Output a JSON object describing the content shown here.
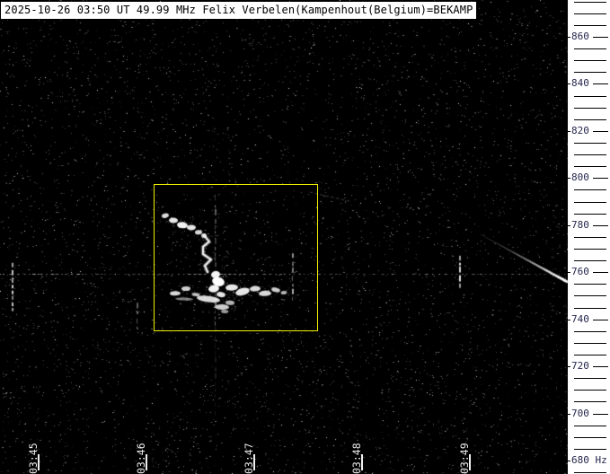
{
  "header": {
    "title": "2025-10-26 03:50 UT 49.99 MHz Felix Verbelen(Kampenhout(Belgium)=BEKAMP"
  },
  "colors": {
    "background": "#000000",
    "title_bg": "#ffffff",
    "title_text": "#000000",
    "axis_bg": "#ffffff",
    "axis_text": "#26264e",
    "tick_line": "#000000",
    "time_label_text": "#ececec",
    "highlight_box": "#f0f000",
    "signal": "#ffffff"
  },
  "time_axis": {
    "labels": [
      "03:45",
      "03:46",
      "03:47",
      "03:48",
      "03:49"
    ]
  },
  "freq_axis": {
    "labeled_values": [
      860,
      840,
      820,
      800,
      780,
      760,
      740,
      720,
      700,
      680
    ],
    "bottom_label": "680 Hz",
    "minor_step_hz": 5,
    "top_hz": 875,
    "bottom_hz": 675
  },
  "chart_data": {
    "type": "heatmap",
    "subtype": "radio-meteor-spectrogram",
    "title": "2025-10-26 03:50 UT 49.99 MHz Felix Verbelen(Kampenhout(Belgium)=BEKAMP",
    "x": {
      "label": "UT time",
      "tick_labels": [
        "03:45",
        "03:46",
        "03:47",
        "03:48",
        "03:49"
      ],
      "tick_interval_s": 60
    },
    "y": {
      "label": "Hz",
      "min": 675,
      "max": 875,
      "major_tick_hz": 20,
      "minor_tick_hz": 5
    },
    "legend": "none",
    "grid": "off",
    "carrier_line_hz": 760,
    "highlight_box": {
      "t0_s": 64,
      "t1_s": 155,
      "f0_hz": 735,
      "f1_hz": 797.5,
      "t0_label": "03:46:04",
      "t1_label": "03:47:35"
    },
    "meteor_head_echo": {
      "diagonal_blobs": [
        [
          70.5,
          784,
          4,
          2.5,
          0.85
        ],
        [
          75,
          782,
          5,
          3,
          0.9
        ],
        [
          80,
          780,
          6,
          3.5,
          0.95
        ],
        [
          85,
          779,
          5,
          3,
          0.9
        ],
        [
          89,
          777,
          4,
          2.5,
          0.85
        ],
        [
          92,
          775.5,
          3,
          2.5,
          0.8
        ]
      ],
      "wiggle_t_f": [
        [
          92,
          775.7
        ],
        [
          95,
          773.0
        ],
        [
          91.5,
          770.8
        ],
        [
          91.5,
          767.7
        ],
        [
          96,
          765.4
        ],
        [
          92.5,
          762.8
        ],
        [
          94,
          760.1
        ]
      ]
    },
    "echo_blobs": [
      [
        98.5,
        759,
        5,
        4,
        0.95
      ],
      [
        100,
        756,
        7,
        5,
        1.0
      ],
      [
        97.5,
        753,
        6,
        4,
        0.95
      ],
      [
        101.5,
        750.5,
        5,
        3,
        0.9
      ],
      [
        76,
        751,
        6,
        2.5,
        0.85
      ],
      [
        82,
        753,
        5,
        2.5,
        0.8
      ],
      [
        87.5,
        750.5,
        4.5,
        2,
        0.75
      ],
      [
        107.5,
        753.5,
        7,
        3.5,
        0.9
      ],
      [
        113.5,
        751.7,
        8,
        4,
        0.9
      ],
      [
        120.5,
        753,
        6,
        3,
        0.85
      ],
      [
        126,
        751,
        7,
        3,
        0.85
      ],
      [
        132,
        752.5,
        5,
        2.5,
        0.8
      ],
      [
        136.5,
        751.3,
        3.5,
        2,
        0.7
      ],
      [
        94.5,
        748.6,
        13,
        3.5,
        0.85
      ],
      [
        102,
        745.2,
        8,
        3,
        0.8
      ],
      [
        106.5,
        747,
        5,
        2.5,
        0.7
      ],
      [
        103.5,
        743.3,
        4,
        2,
        0.6
      ],
      [
        81,
        748.6,
        10,
        1.5,
        0.5
      ]
    ],
    "vertical_streaks": [
      {
        "t_s": -15,
        "f_hi": 764,
        "f_lo": 744,
        "intensity": 0.9
      },
      {
        "t_s": 54.5,
        "f_hi": 747,
        "f_lo": 735,
        "intensity": 0.55
      },
      {
        "t_s": 98,
        "f_hi": 793,
        "f_lo": 737,
        "intensity": 0.5
      },
      {
        "t_s": 98,
        "f_hi": 737,
        "f_lo": 700,
        "intensity": 0.18
      },
      {
        "t_s": 141,
        "f_hi": 768,
        "f_lo": 749,
        "intensity": 0.7
      },
      {
        "t_s": 234,
        "f_hi": 767,
        "f_lo": 753.5,
        "intensity": 0.95
      }
    ],
    "aircraft_trail": {
      "faint_segment_t_f": [
        [
          151,
          794
        ],
        [
          174,
          790
        ]
      ],
      "main_segment_t_f": [
        [
          246,
          776
        ],
        [
          294,
          756
        ]
      ]
    }
  }
}
